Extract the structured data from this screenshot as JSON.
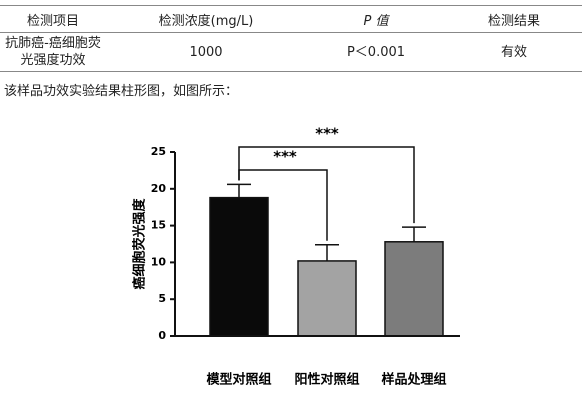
{
  "table": {
    "header": [
      "检测项目",
      "检测浓度(mg/L)",
      "P 值",
      "检测结果"
    ],
    "rows": [
      [
        "抗肺癌-癌细胞荧光强度功效",
        "1000",
        "P＜0.001",
        "有效"
      ]
    ]
  },
  "caption": "该样品功效实验结果柱形图，如图所示：",
  "chart_data": {
    "type": "bar",
    "ylabel": "癌细胞荧光强度",
    "categories": [
      "模型对照组",
      "阳性对照组",
      "样品处理组"
    ],
    "values": [
      18.8,
      10.2,
      12.8
    ],
    "errors": [
      1.8,
      2.2,
      2.0
    ],
    "colors": [
      "#0a0a0a",
      "#a3a3a3",
      "#7c7c7c"
    ],
    "ylim": [
      0,
      25
    ],
    "yticks": [
      0,
      5,
      10,
      15,
      20,
      25
    ],
    "annotations": [
      "***",
      "***"
    ]
  }
}
